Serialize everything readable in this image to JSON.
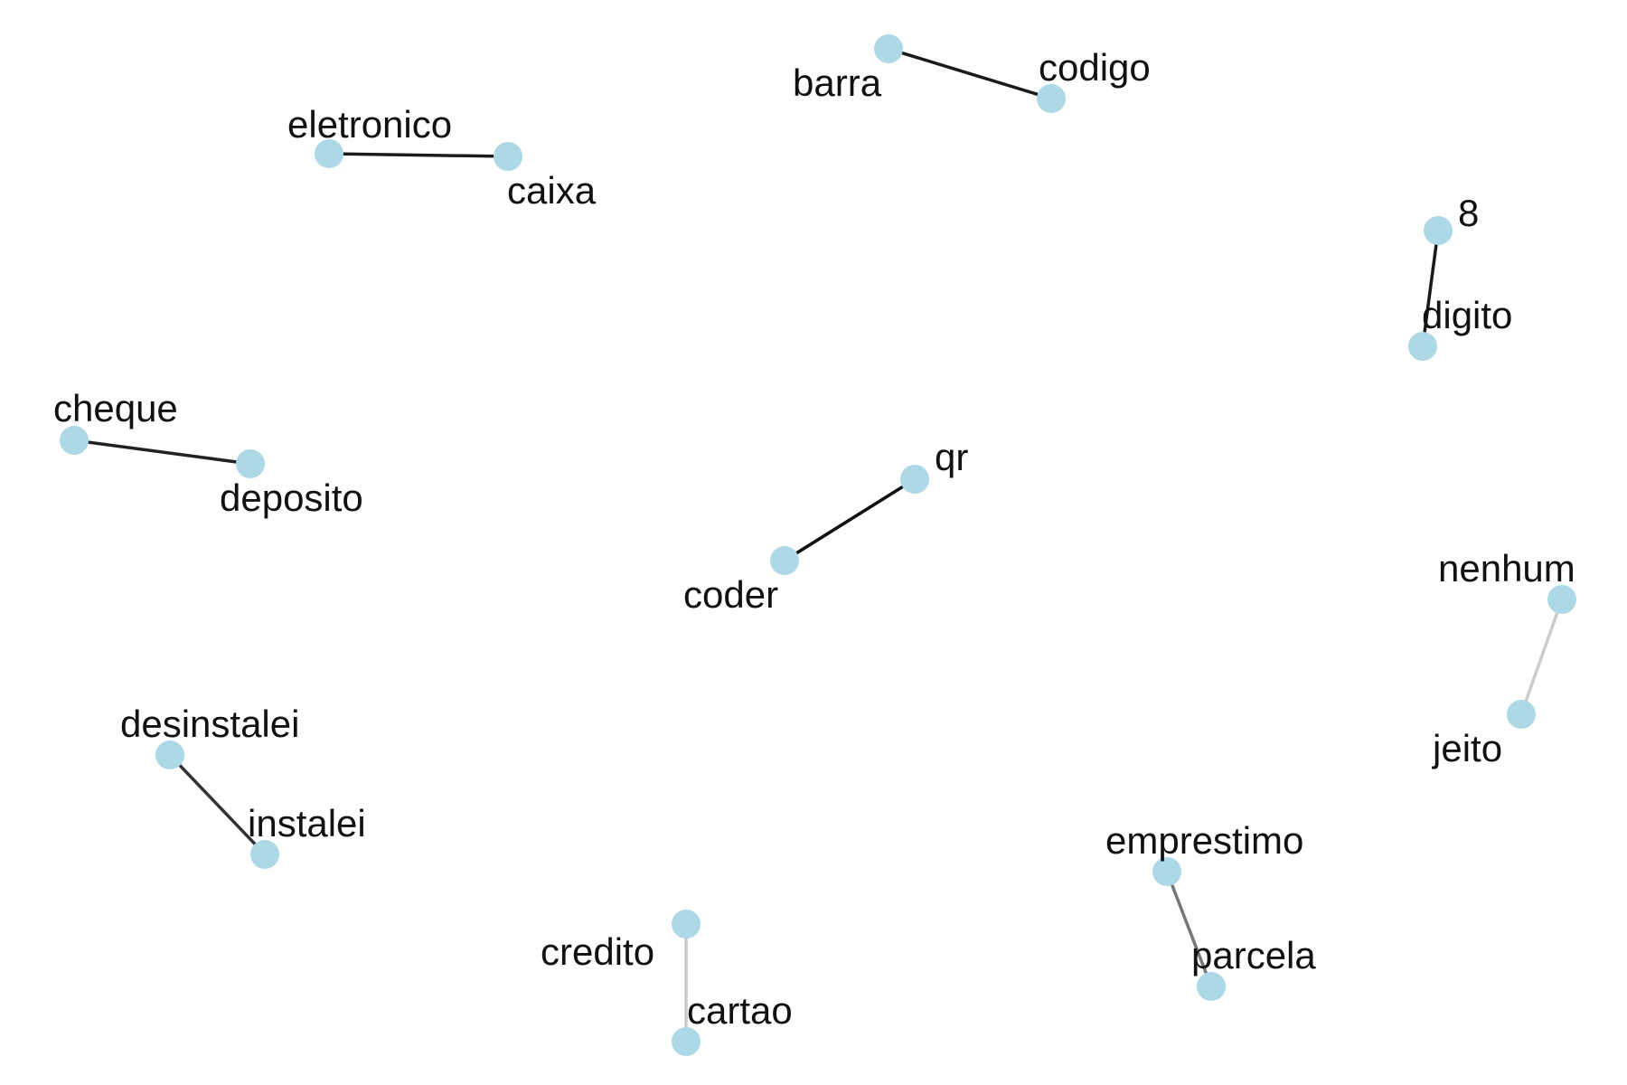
{
  "node_color": "#add8e6",
  "pairs": [
    {
      "source": "barra",
      "target": "codigo",
      "edge_color": "#1a1a1a"
    },
    {
      "source": "eletronico",
      "target": "caixa",
      "edge_color": "#1a1a1a"
    },
    {
      "source": "8",
      "target": "digito",
      "edge_color": "#1a1a1a"
    },
    {
      "source": "cheque",
      "target": "deposito",
      "edge_color": "#222222"
    },
    {
      "source": "qr",
      "target": "coder",
      "edge_color": "#111111"
    },
    {
      "source": "nenhum",
      "target": "jeito",
      "edge_color": "#cccccc"
    },
    {
      "source": "desinstalei",
      "target": "instalei",
      "edge_color": "#333333"
    },
    {
      "source": "emprestimo",
      "target": "parcela",
      "edge_color": "#777777"
    },
    {
      "source": "credito",
      "target": "cartao",
      "edge_color": "#c8c8c8"
    }
  ]
}
